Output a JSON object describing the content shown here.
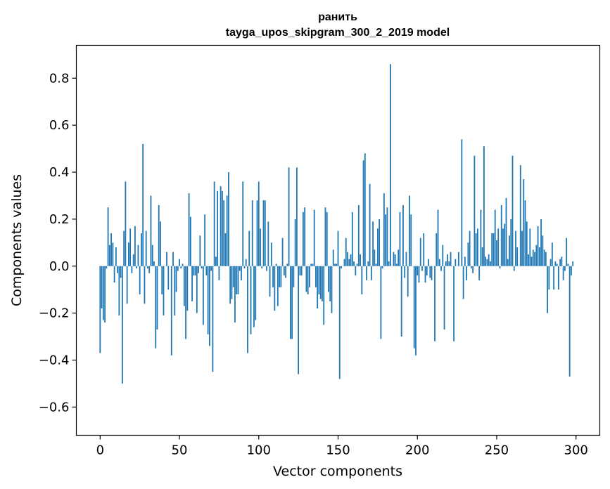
{
  "chart_data": {
    "type": "bar",
    "title": "ранить",
    "subtitle": "tayga_upos_skipgram_300_2_2019 model",
    "xlabel": "Vector components",
    "ylabel": "Components values",
    "xlim": [
      -15,
      315
    ],
    "ylim": [
      -0.72,
      0.94
    ],
    "x_ticks": [
      0,
      50,
      100,
      150,
      200,
      250,
      300
    ],
    "x_tick_labels": [
      "0",
      "50",
      "100",
      "150",
      "200",
      "250",
      "300"
    ],
    "y_ticks": [
      -0.6,
      -0.4,
      -0.2,
      0.0,
      0.2,
      0.4,
      0.6,
      0.8
    ],
    "y_tick_labels": [
      "−0.6",
      "−0.4",
      "−0.2",
      "0.0",
      "0.2",
      "0.4",
      "0.6",
      "0.8"
    ],
    "bar_color": "#1f77b4",
    "grid": false,
    "x": "0..299",
    "values": [
      -0.37,
      -0.18,
      -0.23,
      -0.24,
      -0.01,
      0.25,
      0.09,
      0.14,
      0.1,
      -0.07,
      0.08,
      -0.03,
      -0.21,
      -0.05,
      -0.5,
      0.15,
      0.36,
      -0.16,
      0.1,
      0.16,
      -0.03,
      0.05,
      0.17,
      -0.01,
      0.09,
      -0.12,
      0.14,
      0.52,
      -0.16,
      0.15,
      -0.01,
      -0.03,
      0.3,
      0.09,
      0.02,
      -0.35,
      -0.27,
      0.26,
      0.19,
      -0.12,
      -0.21,
      0.0,
      0.06,
      -0.1,
      0.0,
      -0.38,
      0.06,
      -0.21,
      -0.11,
      -0.02,
      0.03,
      -0.01,
      0.01,
      -0.17,
      -0.31,
      -0.19,
      0.31,
      0.21,
      -0.15,
      -0.04,
      -0.04,
      -0.2,
      -0.03,
      0.13,
      -0.01,
      -0.25,
      0.22,
      -0.04,
      -0.29,
      -0.34,
      -0.02,
      -0.45,
      0.36,
      0.04,
      0.32,
      -0.06,
      0.34,
      0.32,
      0.28,
      0.14,
      0.3,
      0.4,
      -0.16,
      -0.14,
      -0.09,
      -0.24,
      -0.12,
      -0.12,
      -0.02,
      -0.06,
      0.36,
      -0.01,
      0.03,
      -0.37,
      0.15,
      -0.29,
      0.28,
      -0.26,
      -0.23,
      0.28,
      0.36,
      0.16,
      -0.01,
      0.28,
      0.28,
      -0.02,
      0.19,
      -0.13,
      0.1,
      -0.09,
      -0.19,
      0.01,
      -0.17,
      -0.09,
      -0.09,
      0.12,
      -0.04,
      -0.05,
      0.01,
      0.42,
      -0.31,
      -0.31,
      -0.09,
      0.2,
      0.42,
      -0.46,
      -0.04,
      -0.04,
      0.23,
      0.25,
      -0.11,
      -0.12,
      -0.09,
      0.01,
      0.01,
      0.24,
      -0.09,
      -0.18,
      -0.12,
      -0.14,
      -0.15,
      -0.25,
      0.25,
      0.23,
      -0.11,
      -0.15,
      -0.2,
      0.07,
      0.01,
      0.01,
      0.15,
      -0.48,
      -0.01,
      0.0,
      0.03,
      0.12,
      0.06,
      0.03,
      0.05,
      0.23,
      0.02,
      -0.04,
      0.01,
      0.26,
      0.05,
      -0.12,
      0.45,
      0.48,
      -0.06,
      0.02,
      0.35,
      -0.06,
      0.19,
      0.07,
      0.01,
      0.16,
      0.2,
      -0.31,
      -0.01,
      0.31,
      0.22,
      0.25,
      0.02,
      0.86,
      0.0,
      0.06,
      0.05,
      0.01,
      0.07,
      0.23,
      -0.3,
      0.26,
      -0.05,
      0.06,
      -0.13,
      0.3,
      0.22,
      0.0,
      -0.35,
      -0.38,
      -0.04,
      -0.07,
      0.12,
      -0.02,
      0.14,
      -0.07,
      -0.04,
      0.03,
      -0.05,
      -0.06,
      0.0,
      -0.32,
      0.14,
      0.24,
      0.03,
      -0.02,
      0.09,
      -0.27,
      0.02,
      0.05,
      0.02,
      0.06,
      0.0,
      -0.32,
      0.03,
      0.0,
      0.06,
      0.0,
      0.54,
      -0.14,
      0.04,
      -0.06,
      0.1,
      0.15,
      -0.01,
      -0.03,
      0.47,
      0.14,
      0.16,
      -0.06,
      0.24,
      0.08,
      0.51,
      0.04,
      0.03,
      0.05,
      0.02,
      0.14,
      0.14,
      0.24,
      0.11,
      0.16,
      -0.01,
      0.26,
      0.16,
      0.18,
      0.29,
      0.03,
      0.13,
      0.2,
      0.47,
      -0.02,
      0.15,
      0.08,
      0.0,
      0.43,
      0.15,
      0.37,
      0.28,
      0.19,
      0.05,
      0.16,
      0.04,
      0.07,
      0.06,
      0.09,
      0.17,
      0.08,
      0.2,
      0.13,
      0.07,
      0.06,
      -0.2,
      -0.1,
      0.03,
      0.1,
      -0.1,
      0.02,
      0.01,
      -0.1,
      0.03,
      0.04,
      -0.06,
      -0.02,
      0.12,
      0.01,
      -0.47,
      -0.04,
      0.02
    ]
  }
}
